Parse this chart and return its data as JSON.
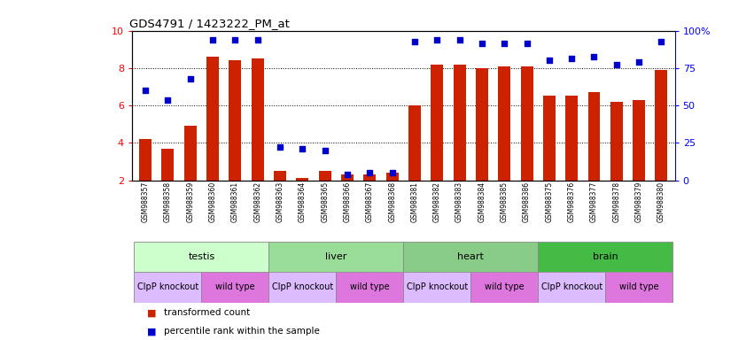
{
  "title": "GDS4791 / 1423222_PM_at",
  "samples": [
    "GSM988357",
    "GSM988358",
    "GSM988359",
    "GSM988360",
    "GSM988361",
    "GSM988362",
    "GSM988363",
    "GSM988364",
    "GSM988365",
    "GSM988366",
    "GSM988367",
    "GSM988368",
    "GSM988381",
    "GSM988382",
    "GSM988383",
    "GSM988384",
    "GSM988385",
    "GSM988386",
    "GSM988375",
    "GSM988376",
    "GSM988377",
    "GSM988378",
    "GSM988379",
    "GSM988380"
  ],
  "bar_values": [
    4.2,
    3.7,
    4.9,
    8.6,
    8.4,
    8.5,
    2.5,
    2.1,
    2.5,
    2.3,
    2.3,
    2.4,
    6.0,
    8.2,
    8.2,
    8.0,
    8.1,
    8.1,
    6.5,
    6.5,
    6.7,
    6.2,
    6.3,
    7.9
  ],
  "dot_values": [
    6.8,
    6.3,
    7.4,
    9.5,
    9.5,
    9.5,
    3.8,
    3.7,
    3.6,
    2.3,
    2.4,
    2.4,
    9.4,
    9.5,
    9.5,
    9.3,
    9.3,
    9.3,
    8.4,
    8.5,
    8.6,
    8.2,
    8.3,
    9.4
  ],
  "ylim": [
    2,
    10
  ],
  "yticks": [
    2,
    4,
    6,
    8,
    10
  ],
  "right_yticks": [
    0,
    25,
    50,
    75,
    100
  ],
  "right_ytick_labels": [
    "0",
    "25",
    "50",
    "75",
    "100%"
  ],
  "bar_color": "#cc2200",
  "dot_color": "#0000cc",
  "bar_bottom": 2,
  "tissues": [
    {
      "label": "testis",
      "start": 0,
      "end": 6,
      "color": "#ccffcc"
    },
    {
      "label": "liver",
      "start": 6,
      "end": 12,
      "color": "#99dd99"
    },
    {
      "label": "heart",
      "start": 12,
      "end": 18,
      "color": "#88cc88"
    },
    {
      "label": "brain",
      "start": 18,
      "end": 24,
      "color": "#44bb44"
    }
  ],
  "genotypes": [
    {
      "label": "ClpP knockout",
      "start": 0,
      "end": 3,
      "color": "#ddbbff"
    },
    {
      "label": "wild type",
      "start": 3,
      "end": 6,
      "color": "#dd77dd"
    },
    {
      "label": "ClpP knockout",
      "start": 6,
      "end": 9,
      "color": "#ddbbff"
    },
    {
      "label": "wild type",
      "start": 9,
      "end": 12,
      "color": "#dd77dd"
    },
    {
      "label": "ClpP knockout",
      "start": 12,
      "end": 15,
      "color": "#ddbbff"
    },
    {
      "label": "wild type",
      "start": 15,
      "end": 18,
      "color": "#dd77dd"
    },
    {
      "label": "ClpP knockout",
      "start": 18,
      "end": 21,
      "color": "#ddbbff"
    },
    {
      "label": "wild type",
      "start": 21,
      "end": 24,
      "color": "#dd77dd"
    }
  ],
  "legend_items": [
    {
      "label": "transformed count",
      "color": "#cc2200"
    },
    {
      "label": "percentile rank within the sample",
      "color": "#0000cc"
    }
  ]
}
